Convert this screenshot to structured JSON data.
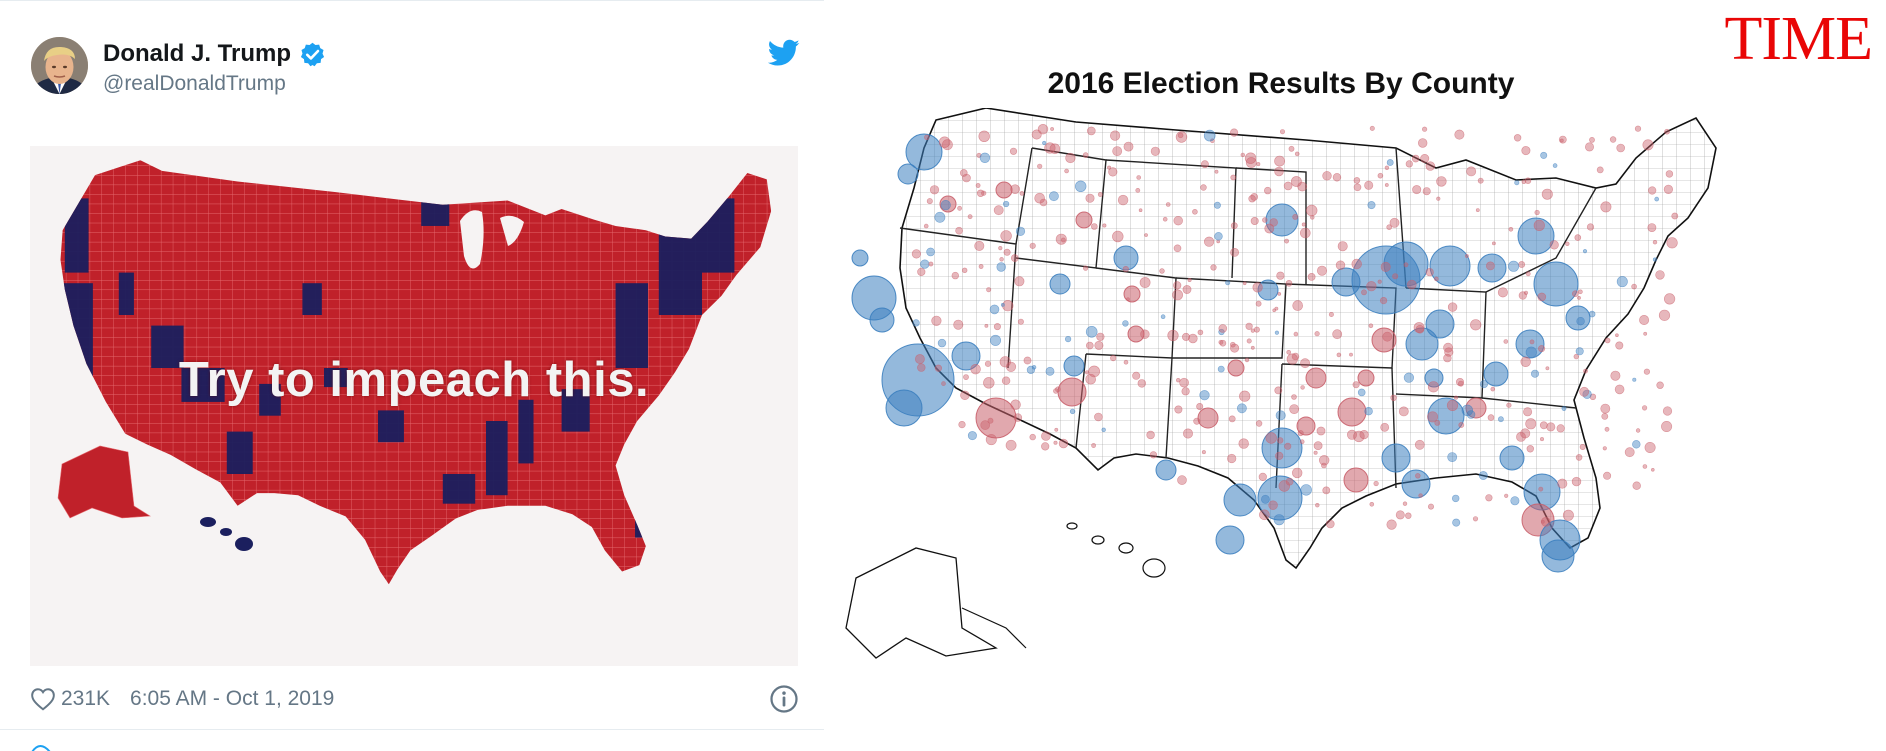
{
  "tweet": {
    "author_name": "Donald J. Trump",
    "handle": "@realDonaldTrump",
    "image_overlay_text": "Try to impeach this.",
    "like_count": "231K",
    "timestamp": "6:05 AM - Oct 1, 2019",
    "icons": {
      "avatar": "avatar",
      "verified": "verified-badge-icon",
      "platform": "twitter-bird-icon",
      "like": "heart-icon",
      "info": "info-icon"
    },
    "colors": {
      "map_red": "#c0212a",
      "map_blue": "#1b1f5e",
      "verified_blue": "#1da1f2",
      "meta_gray": "#657786"
    }
  },
  "time_chart": {
    "logo": "TIME",
    "title": "2016 Election Results By County",
    "colors": {
      "logo_red": "#e90606",
      "dem_blue": "#3c7fbf",
      "rep_red": "#c9606b"
    }
  }
}
